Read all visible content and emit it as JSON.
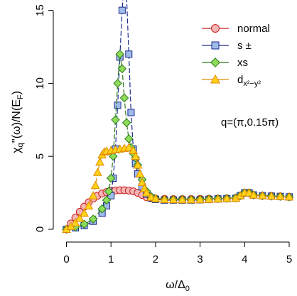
{
  "chart_data": {
    "type": "line",
    "title": "",
    "xlabel": "ω/Δ₀",
    "ylabel": "χq''(ω)/N(EF)",
    "xlim": [
      -0.1,
      5.1
    ],
    "ylim": [
      -0.1,
      17.3
    ],
    "x_ticks": [
      0,
      1,
      2,
      3,
      4,
      5
    ],
    "y_ticks": [
      0,
      5,
      10,
      15
    ],
    "grid": false,
    "legend_position": "top-right",
    "annotation": "q=(π,0.15π)",
    "series": [
      {
        "name": "normal",
        "marker": "circle",
        "color": "#cc1f1f",
        "fill": "#f4b6b6",
        "x": [
          0,
          0.1,
          0.2,
          0.3,
          0.4,
          0.5,
          0.6,
          0.7,
          0.8,
          0.9,
          1.0,
          1.1,
          1.2,
          1.3,
          1.4,
          1.5,
          1.6,
          1.7,
          1.8,
          1.9,
          2.0,
          2.2,
          2.4,
          2.6,
          2.8,
          3.0,
          3.2,
          3.4,
          3.6,
          3.8,
          3.9,
          4.0,
          4.1,
          4.2,
          4.4,
          4.6,
          4.8,
          5.0
        ],
        "y": [
          0,
          0.4,
          0.8,
          1.2,
          1.55,
          1.85,
          2.1,
          2.3,
          2.45,
          2.55,
          2.62,
          2.66,
          2.68,
          2.68,
          2.65,
          2.6,
          2.5,
          2.35,
          2.2,
          2.12,
          2.1,
          2.08,
          2.07,
          2.07,
          2.07,
          2.08,
          2.09,
          2.1,
          2.12,
          2.15,
          2.3,
          2.5,
          2.5,
          2.35,
          2.3,
          2.28,
          2.25,
          2.22
        ]
      },
      {
        "name": "s ±",
        "marker": "square",
        "color": "#1a2a8c",
        "fill": "#9fbbea",
        "x": [
          0,
          0.2,
          0.4,
          0.6,
          0.8,
          0.9,
          1.0,
          1.05,
          1.1,
          1.15,
          1.2,
          1.25,
          1.3,
          1.35,
          1.4,
          1.45,
          1.5,
          1.55,
          1.6,
          1.7,
          1.8,
          1.9,
          2.0,
          2.2,
          2.4,
          2.6,
          2.8,
          3.0,
          3.2,
          3.4,
          3.6,
          3.8,
          3.9,
          4.0,
          4.1,
          4.2,
          4.4,
          4.6,
          4.8,
          5.0
        ],
        "y": [
          0,
          0.1,
          0.25,
          0.55,
          1.1,
          1.6,
          2.3,
          3.5,
          5.5,
          8.5,
          11.8,
          15.0,
          17.0,
          16.0,
          12.0,
          8.0,
          5.5,
          4.5,
          3.8,
          2.9,
          2.4,
          2.15,
          2.05,
          2.0,
          2.0,
          2.0,
          2.0,
          2.02,
          2.05,
          2.08,
          2.1,
          2.12,
          2.3,
          2.5,
          2.5,
          2.35,
          2.3,
          2.27,
          2.25,
          2.22
        ]
      },
      {
        "name": "xs",
        "marker": "diamond",
        "color": "#2a7a1a",
        "fill": "#8fdc5a",
        "x": [
          0,
          0.2,
          0.4,
          0.6,
          0.8,
          0.9,
          0.95,
          1.0,
          1.05,
          1.1,
          1.15,
          1.2,
          1.25,
          1.3,
          1.35,
          1.4,
          1.45,
          1.5,
          1.55,
          1.6,
          1.7,
          1.8,
          1.9,
          2.0,
          2.2,
          2.4,
          2.6,
          2.8,
          3.0,
          3.2,
          3.4,
          3.6,
          3.8,
          3.9,
          4.0,
          4.1,
          4.2,
          4.4,
          4.6,
          4.8,
          5.0
        ],
        "y": [
          0,
          0.15,
          0.35,
          0.7,
          1.4,
          2.0,
          2.6,
          3.5,
          5.0,
          7.5,
          10.0,
          12.0,
          11.0,
          9.0,
          7.3,
          6.2,
          5.6,
          5.2,
          4.9,
          4.4,
          3.4,
          2.6,
          2.25,
          2.1,
          2.05,
          2.05,
          2.05,
          2.05,
          2.06,
          2.08,
          2.1,
          2.12,
          2.15,
          2.3,
          2.5,
          2.5,
          2.35,
          2.3,
          2.27,
          2.25,
          2.22
        ]
      },
      {
        "name": "dx²−y²",
        "marker": "triangle",
        "color": "#e08a00",
        "fill": "#ffd21a",
        "x": [
          0,
          0.1,
          0.2,
          0.3,
          0.4,
          0.5,
          0.6,
          0.65,
          0.7,
          0.75,
          0.8,
          0.85,
          0.9,
          1.0,
          1.1,
          1.2,
          1.3,
          1.4,
          1.5,
          1.55,
          1.6,
          1.65,
          1.7,
          1.75,
          1.8,
          1.9,
          2.0,
          2.2,
          2.4,
          2.6,
          2.8,
          3.0,
          3.2,
          3.4,
          3.6,
          3.8,
          3.9,
          4.0,
          4.1,
          4.2,
          4.4,
          4.6,
          4.8,
          5.0
        ],
        "y": [
          0,
          0.2,
          0.45,
          0.75,
          1.1,
          1.6,
          2.3,
          3.0,
          3.9,
          4.6,
          5.1,
          5.3,
          5.35,
          5.4,
          5.45,
          5.5,
          5.55,
          5.6,
          5.4,
          5.0,
          4.4,
          3.8,
          3.2,
          2.8,
          2.5,
          2.2,
          2.1,
          2.05,
          2.03,
          2.02,
          2.02,
          2.03,
          2.05,
          2.08,
          2.1,
          2.12,
          2.3,
          2.5,
          2.5,
          2.35,
          2.3,
          2.27,
          2.25,
          2.22
        ]
      }
    ]
  }
}
